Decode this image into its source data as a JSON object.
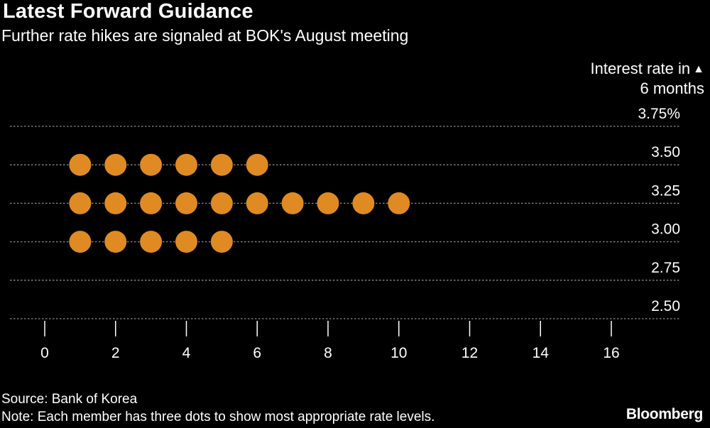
{
  "header": {
    "title": "Latest Forward Guidance",
    "subtitle": "Further rate hikes are signaled at BOK's August meeting"
  },
  "footer": {
    "source": "Source: Bank of Korea",
    "note": "Note: Each member has three dots to show most appropriate rate levels.",
    "brand": "Bloomberg"
  },
  "chart_data": {
    "type": "scatter",
    "title": "Latest Forward Guidance",
    "subtitle": "Further rate hikes are signaled at BOK's August meeting",
    "ylabel_line1": "Interest rate in",
    "ylabel_line2": "6 months",
    "ylabel_arrow": "▲",
    "xlabel": "",
    "xlim": [
      0,
      16
    ],
    "ylim": [
      2.5,
      3.75
    ],
    "x_ticks": [
      0,
      2,
      4,
      6,
      8,
      10,
      12,
      14,
      16
    ],
    "y_ticks": [
      {
        "value": 3.75,
        "label": "3.75%"
      },
      {
        "value": 3.5,
        "label": "3.50"
      },
      {
        "value": 3.25,
        "label": "3.25"
      },
      {
        "value": 3.0,
        "label": "3.00"
      },
      {
        "value": 2.75,
        "label": "2.75"
      },
      {
        "value": 2.5,
        "label": "2.50"
      }
    ],
    "grid": true,
    "rows": [
      {
        "rate": 3.5,
        "dots": 6
      },
      {
        "rate": 3.25,
        "dots": 10
      },
      {
        "rate": 3.0,
        "dots": 5
      }
    ],
    "colors": {
      "dot": "#e08a23",
      "background": "#000000",
      "grid": "#8c8c8c",
      "text": "#ffffff"
    }
  }
}
